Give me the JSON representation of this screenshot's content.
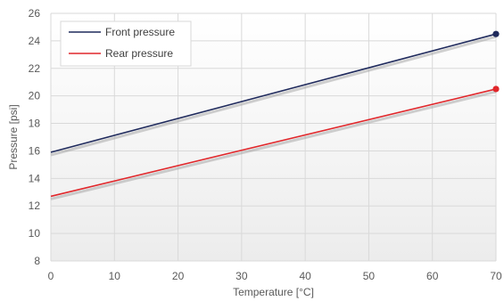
{
  "chart_data": {
    "type": "line",
    "title": "",
    "xlabel": "Temperature [°C]",
    "ylabel": "Pressure [psi]",
    "xlim": [
      0,
      70
    ],
    "ylim": [
      8,
      26
    ],
    "x_ticks": [
      0,
      10,
      20,
      30,
      40,
      50,
      60,
      70
    ],
    "y_ticks": [
      8,
      10,
      12,
      14,
      16,
      18,
      20,
      22,
      24,
      26
    ],
    "grid": true,
    "legend_position": "top-left",
    "series": [
      {
        "name": "Front pressure",
        "color": "#1f2a5c",
        "x": [
          0,
          70
        ],
        "y": [
          15.9,
          24.5
        ]
      },
      {
        "name": "Rear pressure",
        "color": "#e0272b",
        "x": [
          0,
          70
        ],
        "y": [
          12.7,
          20.5
        ]
      }
    ]
  }
}
